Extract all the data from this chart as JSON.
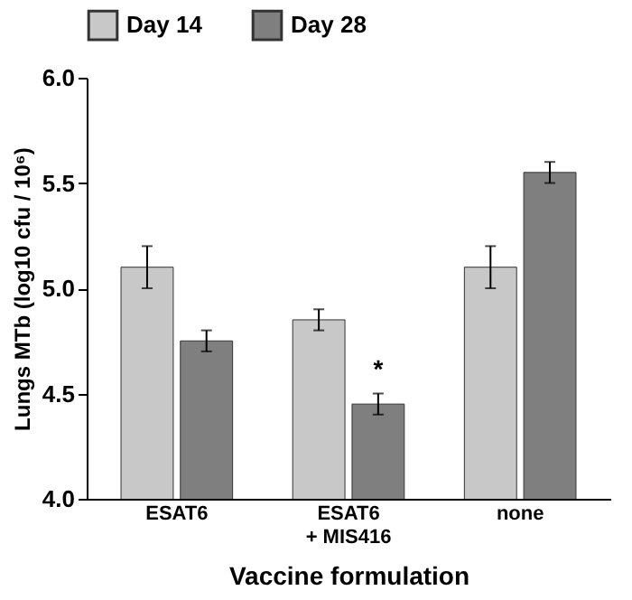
{
  "chart_data": {
    "type": "bar",
    "xlabel": "Vaccine formulation",
    "ylabel": "Lungs MTb (log10 cfu / 10⁶)",
    "categories": [
      "ESAT6",
      "ESAT6 + MIS416",
      "none"
    ],
    "series": [
      {
        "name": "Day 14",
        "color": "#c8c8c8",
        "values": [
          5.1,
          4.85,
          5.1
        ],
        "errors": [
          0.1,
          0.05,
          0.1
        ]
      },
      {
        "name": "Day 28",
        "color": "#7f7f7f",
        "values": [
          4.75,
          4.45,
          5.55
        ],
        "errors": [
          0.05,
          0.05,
          0.05
        ]
      }
    ],
    "ylim": [
      4,
      6
    ],
    "yticks": [
      {
        "value": 4,
        "label": "4.0"
      },
      4.5,
      {
        "value": 5,
        "label": "5.0"
      },
      5.5,
      {
        "value": 6,
        "label": "6.0"
      }
    ],
    "annotations": [
      {
        "text": "*",
        "x": "ESAT6 + MIS416",
        "y": 4.55
      }
    ],
    "legend": "top",
    "grid": false
  }
}
